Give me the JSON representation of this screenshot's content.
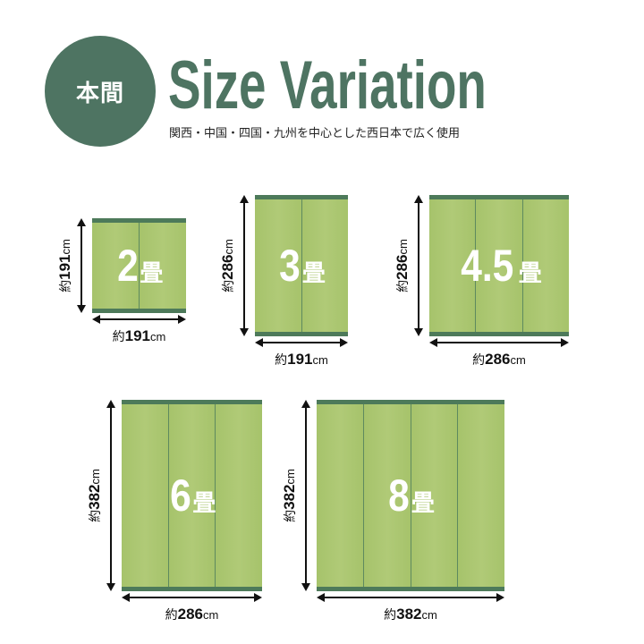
{
  "header": {
    "badge": "本間",
    "title": "Size Variation",
    "subtitle": "関西・中国・四国・九州を中心とした西日本で広く使用"
  },
  "colors": {
    "brand_green": "#4e7462",
    "tatami": "#a8c46e",
    "border": "#4d7a5a"
  },
  "mats": [
    {
      "size": "2",
      "unit": "畳",
      "panels": 2,
      "width": {
        "prefix": "約",
        "value": "191",
        "unit": "cm"
      },
      "height": {
        "prefix": "約",
        "value": "191",
        "unit": "cm"
      }
    },
    {
      "size": "3",
      "unit": "畳",
      "panels": 2,
      "width": {
        "prefix": "約",
        "value": "191",
        "unit": "cm"
      },
      "height": {
        "prefix": "約",
        "value": "286",
        "unit": "cm"
      }
    },
    {
      "size": "4.5",
      "unit": "畳",
      "panels": 3,
      "width": {
        "prefix": "約",
        "value": "286",
        "unit": "cm"
      },
      "height": {
        "prefix": "約",
        "value": "286",
        "unit": "cm"
      }
    },
    {
      "size": "6",
      "unit": "畳",
      "panels": 3,
      "width": {
        "prefix": "約",
        "value": "286",
        "unit": "cm"
      },
      "height": {
        "prefix": "約",
        "value": "382",
        "unit": "cm"
      }
    },
    {
      "size": "8",
      "unit": "畳",
      "panels": 4,
      "width": {
        "prefix": "約",
        "value": "382",
        "unit": "cm"
      },
      "height": {
        "prefix": "約",
        "value": "382",
        "unit": "cm"
      }
    }
  ]
}
